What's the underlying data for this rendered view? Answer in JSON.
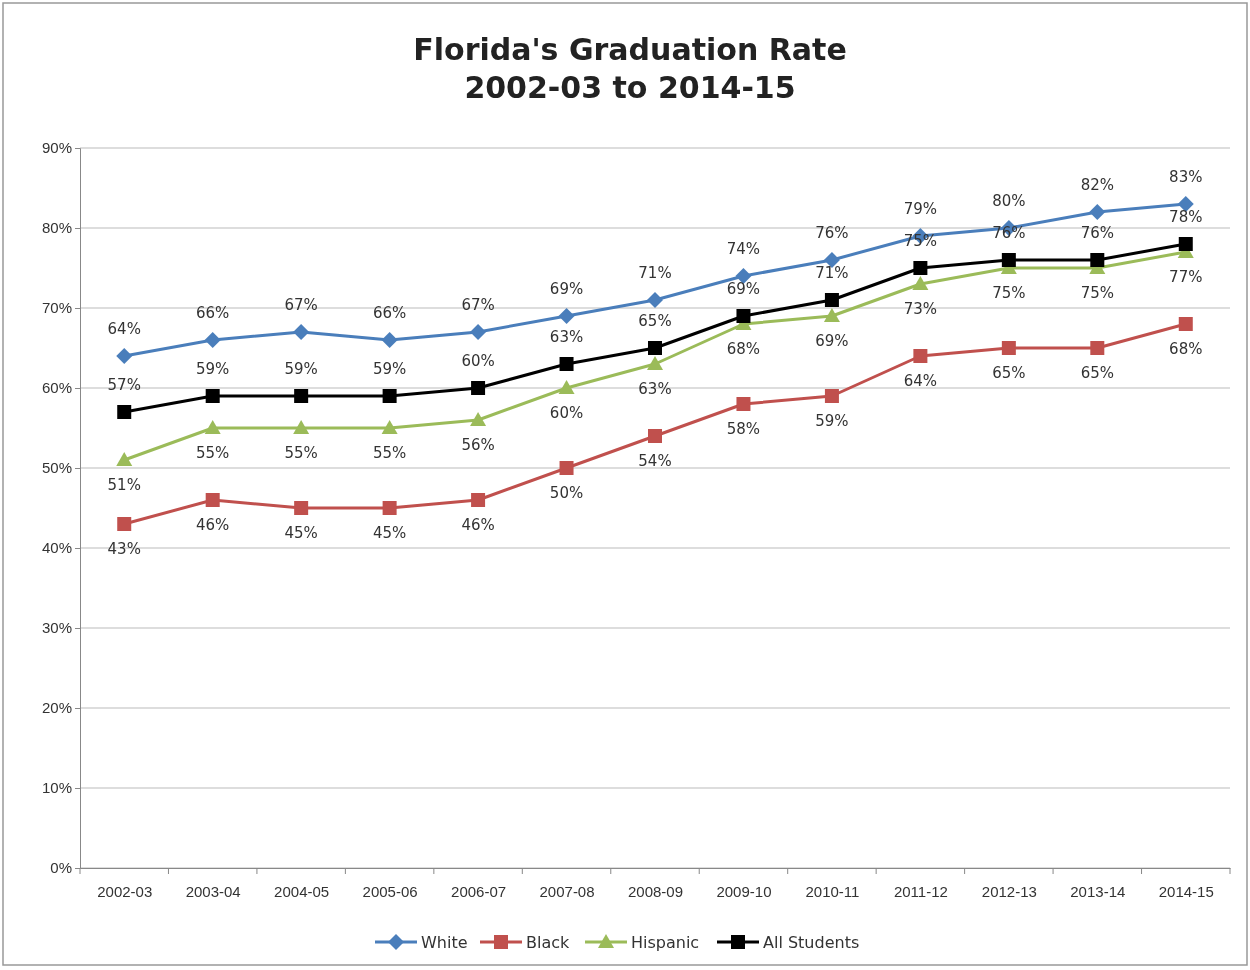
{
  "chart_data": {
    "type": "line",
    "title": "Florida's Graduation Rate\n2002-03 to 2014-15",
    "categories": [
      "2002-03",
      "2003-04",
      "2004-05",
      "2005-06",
      "2006-07",
      "2007-08",
      "2008-09",
      "2009-10",
      "2010-11",
      "2011-12",
      "2012-13",
      "2013-14",
      "2014-15"
    ],
    "series": [
      {
        "name": "White",
        "color": "#4a7ebb",
        "marker": "diamond",
        "values": [
          64,
          66,
          67,
          66,
          67,
          69,
          71,
          74,
          76,
          79,
          80,
          82,
          83
        ],
        "value_labels": [
          "64%",
          "66%",
          "67%",
          "66%",
          "67%",
          "69%",
          "71%",
          "74%",
          "76%",
          "79%",
          "80%",
          "82%",
          "83%"
        ]
      },
      {
        "name": "Black",
        "color": "#c0504d",
        "marker": "square",
        "values": [
          43,
          46,
          45,
          45,
          46,
          50,
          54,
          58,
          59,
          64,
          65,
          65,
          68
        ],
        "value_labels": [
          "43%",
          "46%",
          "45%",
          "45%",
          "46%",
          "50%",
          "54%",
          "58%",
          "59%",
          "64%",
          "65%",
          "65%",
          "68%"
        ]
      },
      {
        "name": "Hispanic",
        "color": "#9bbb59",
        "marker": "triangle",
        "values": [
          51,
          55,
          55,
          55,
          56,
          60,
          63,
          68,
          69,
          73,
          75,
          75,
          77
        ],
        "value_labels": [
          "51%",
          "55%",
          "55%",
          "55%",
          "56%",
          "60%",
          "63%",
          "68%",
          "69%",
          "73%",
          "75%",
          "75%",
          "77%"
        ]
      },
      {
        "name": "All Students",
        "color": "#000000",
        "marker": "square",
        "values": [
          57,
          59,
          59,
          59,
          60,
          63,
          65,
          69,
          71,
          75,
          76,
          76,
          78
        ],
        "value_labels": [
          "57%",
          "59%",
          "59%",
          "59%",
          "60%",
          "63%",
          "65%",
          "69%",
          "71%",
          "75%",
          "76%",
          "76%",
          "78%"
        ]
      }
    ],
    "ylim": [
      0,
      90
    ],
    "yticks": [
      {
        "value": 0,
        "label": "0%"
      },
      {
        "value": 10,
        "label": "10%"
      },
      {
        "value": 20,
        "label": "20%"
      },
      {
        "value": 30,
        "label": "30%"
      },
      {
        "value": 40,
        "label": "40%"
      },
      {
        "value": 50,
        "label": "50%"
      },
      {
        "value": 60,
        "label": "60%"
      },
      {
        "value": 70,
        "label": "70%"
      },
      {
        "value": 80,
        "label": "80%"
      },
      {
        "value": 90,
        "label": "90%"
      }
    ],
    "grid": "y",
    "legend": "bottom"
  }
}
